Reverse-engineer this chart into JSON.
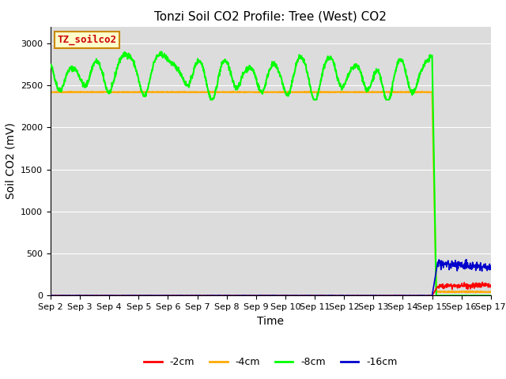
{
  "title": "Tonzi Soil CO2 Profile: Tree (West) CO2",
  "ylabel": "Soil CO2 (mV)",
  "xlabel": "Time",
  "legend_label": "TZ_soilco2",
  "ylim": [
    0,
    3200
  ],
  "yticks": [
    0,
    500,
    1000,
    1500,
    2000,
    2500,
    3000
  ],
  "xlim_start": 0,
  "xlim_end": 15,
  "x_tick_labels": [
    "Sep 2",
    "Sep 3",
    "Sep 4",
    "Sep 5",
    "Sep 6",
    "Sep 7",
    "Sep 8",
    "Sep 9",
    "Sep 10",
    "Sep 11",
    "Sep 12",
    "Sep 13",
    "Sep 14",
    "Sep 15",
    "Sep 16",
    "Sep 17"
  ],
  "colors": {
    "2cm": "#ff0000",
    "4cm": "#ffaa00",
    "8cm": "#00ff00",
    "16cm": "#0000cc"
  },
  "bg_color": "#dcdcdc",
  "title_fontsize": 11,
  "axis_label_fontsize": 10,
  "tick_fontsize": 8
}
